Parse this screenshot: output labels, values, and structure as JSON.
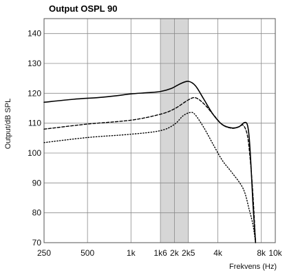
{
  "chart_data": {
    "type": "line",
    "title": "Output OSPL 90",
    "xlabel": "Frekvens (Hz)",
    "ylabel": "Output/dB SPL",
    "xscale": "log",
    "xlim": [
      250,
      10000
    ],
    "ylim": [
      70,
      145
    ],
    "x_ticks": [
      250,
      500,
      1000,
      1600,
      2000,
      2500,
      4000,
      8000,
      10000
    ],
    "x_tick_labels": [
      "250",
      "500",
      "1k",
      "1k6",
      "2k",
      "2k5",
      "4k",
      "8k",
      "10k"
    ],
    "y_ticks": [
      70,
      80,
      90,
      100,
      110,
      120,
      130,
      140
    ],
    "y_tick_labels": [
      "70",
      "80",
      "90",
      "100",
      "110",
      "120",
      "130",
      "140"
    ],
    "grid": true,
    "shaded_band": {
      "x_range": [
        1600,
        2500
      ],
      "color": "#d6d6d6"
    },
    "series": [
      {
        "style": "solid",
        "color": "#000000",
        "x": [
          250,
          400,
          600,
          800,
          1000,
          1300,
          1600,
          1900,
          2200,
          2500,
          2800,
          3200,
          3700,
          4300,
          5000,
          5600,
          6100,
          6400,
          6600,
          6800,
          7000,
          7300
        ],
        "y": [
          117,
          118,
          118.6,
          119.2,
          119.8,
          120.2,
          120.6,
          121.6,
          123.2,
          124,
          122.5,
          118,
          113,
          109.5,
          108.4,
          108.8,
          110.2,
          109.5,
          105,
          95,
          83,
          70
        ]
      },
      {
        "style": "dashed",
        "color": "#000000",
        "x": [
          250,
          500,
          1000,
          1600,
          2000,
          2500,
          2800,
          3200,
          3700,
          4300,
          5000,
          5600,
          6000,
          6400,
          6700,
          7000,
          7300
        ],
        "y": [
          108,
          109.7,
          111,
          113,
          114.8,
          117.8,
          118.5,
          116.5,
          113,
          109.5,
          108.3,
          108.8,
          109.3,
          106,
          98,
          86,
          70
        ]
      },
      {
        "style": "dotted",
        "color": "#000000",
        "x": [
          250,
          500,
          1000,
          1600,
          2000,
          2300,
          2600,
          2800,
          3200,
          3700,
          4300,
          5000,
          6000,
          6600,
          7000,
          7300
        ],
        "y": [
          103.5,
          105.2,
          106.3,
          107.5,
          109.6,
          112.5,
          113.6,
          112.7,
          108.5,
          103,
          97.5,
          93.5,
          88,
          81,
          76,
          70
        ]
      }
    ]
  }
}
